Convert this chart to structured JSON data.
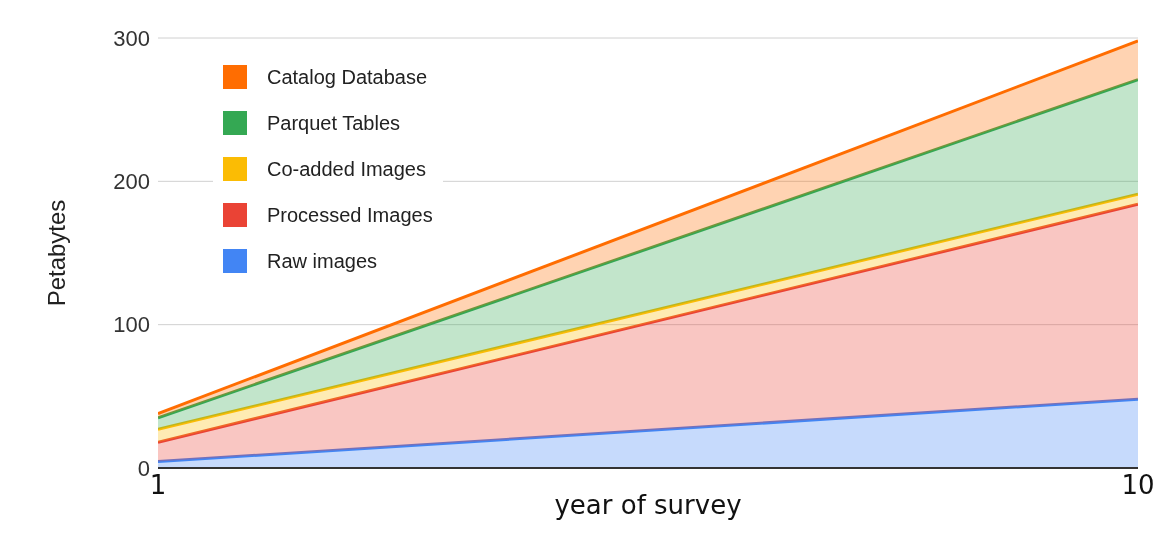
{
  "chart_data": {
    "type": "area",
    "stacked": true,
    "xlabel": "year of survey",
    "ylabel": "Petabytes",
    "x": [
      1,
      10
    ],
    "xlim": [
      1,
      10
    ],
    "xticks": [
      1,
      10
    ],
    "ylim": [
      0,
      300
    ],
    "yticks": [
      0,
      100,
      200,
      300
    ],
    "grid": "y",
    "legend": "top left",
    "marker": "none",
    "series": [
      {
        "name": "Raw images",
        "color": "#4285f4",
        "values": [
          4.5,
          48
        ]
      },
      {
        "name": "Processed Images",
        "color": "#ea4335",
        "values": [
          13.5,
          136
        ]
      },
      {
        "name": "Co-added Images",
        "color": "#fbbc04",
        "values": [
          9,
          7
        ]
      },
      {
        "name": "Parquet Tables",
        "color": "#34a853",
        "values": [
          8,
          80
        ]
      },
      {
        "name": "Catalog Database",
        "color": "#ff6d01",
        "values": [
          3,
          27
        ]
      }
    ]
  }
}
